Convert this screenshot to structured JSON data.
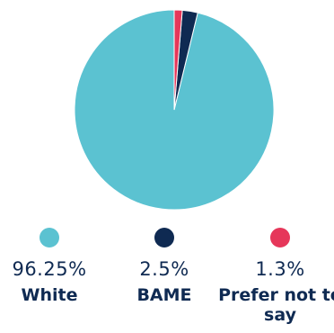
{
  "chart_data": {
    "type": "pie",
    "title": "",
    "slices": [
      {
        "label": "White",
        "value": 96.25,
        "value_label": "96.25%",
        "color": "#5bc2d1"
      },
      {
        "label": "BAME",
        "value": 2.5,
        "value_label": "2.5%",
        "color": "#0f2a52"
      },
      {
        "label": "Prefer not to say",
        "value": 1.3,
        "value_label": "1.3%",
        "color": "#e6375a"
      }
    ],
    "legend_position": "bottom"
  }
}
